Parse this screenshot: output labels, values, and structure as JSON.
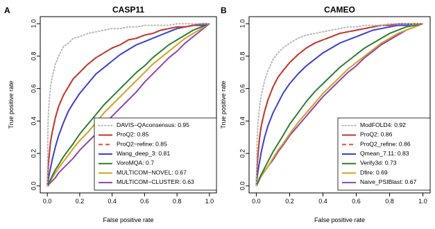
{
  "chart_data": [
    {
      "type": "line",
      "panel_letter": "A",
      "title": "CASP11",
      "xlabel": "False positive rate",
      "ylabel": "True positive rate",
      "xlim": [
        0,
        1
      ],
      "ylim": [
        0,
        1
      ],
      "xticks": [
        "0.0",
        "0.2",
        "0.4",
        "0.6",
        "0.8",
        "1.0"
      ],
      "yticks": [
        "0.0",
        "0.2",
        "0.4",
        "0.6",
        "0.8",
        "1.0"
      ],
      "grid": false,
      "legend_position": "bottom-right",
      "x": [
        0,
        0.005,
        0.01,
        0.02,
        0.03,
        0.05,
        0.07,
        0.1,
        0.13,
        0.16,
        0.2,
        0.25,
        0.3,
        0.35,
        0.4,
        0.45,
        0.5,
        0.55,
        0.6,
        0.65,
        0.7,
        0.75,
        0.8,
        0.85,
        0.9,
        0.95,
        1
      ],
      "series": [
        {
          "name": "DAVIS–QAconsensus",
          "auc_label": "0.95",
          "color": "#b8b8b8",
          "dash": "dotted",
          "values": [
            0,
            0.4,
            0.5,
            0.61,
            0.67,
            0.75,
            0.8,
            0.86,
            0.88,
            0.91,
            0.92,
            0.94,
            0.95,
            0.96,
            0.97,
            0.97,
            0.98,
            0.98,
            0.99,
            0.99,
            0.99,
            0.99,
            1.0,
            1.0,
            1.0,
            1.0,
            1
          ]
        },
        {
          "name": "ProQ2",
          "auc_label": "0.85",
          "color": "#c0392b",
          "dash": "solid",
          "values": [
            0,
            0.1,
            0.17,
            0.27,
            0.33,
            0.42,
            0.49,
            0.56,
            0.61,
            0.66,
            0.7,
            0.75,
            0.79,
            0.82,
            0.85,
            0.87,
            0.9,
            0.91,
            0.93,
            0.94,
            0.96,
            0.97,
            0.98,
            0.98,
            0.99,
            1.0,
            1
          ]
        },
        {
          "name": "ProQ2−refine",
          "auc_label": "0.85",
          "color": "#e74c3c",
          "dash": "dashed",
          "values": [
            0,
            0.1,
            0.17,
            0.27,
            0.33,
            0.42,
            0.49,
            0.56,
            0.61,
            0.66,
            0.7,
            0.75,
            0.79,
            0.82,
            0.85,
            0.87,
            0.9,
            0.91,
            0.93,
            0.94,
            0.96,
            0.97,
            0.98,
            0.98,
            0.99,
            1.0,
            1
          ]
        },
        {
          "name": "Wang_deep_3",
          "auc_label": "0.81",
          "color": "#3a3fcf",
          "dash": "solid",
          "values": [
            0,
            0.03,
            0.06,
            0.11,
            0.16,
            0.24,
            0.31,
            0.39,
            0.46,
            0.51,
            0.57,
            0.63,
            0.69,
            0.73,
            0.77,
            0.81,
            0.84,
            0.87,
            0.89,
            0.91,
            0.93,
            0.95,
            0.97,
            0.98,
            0.99,
            0.99,
            1
          ]
        },
        {
          "name": "VoroMQA",
          "auc_label": "0.7",
          "color": "#2e7d32",
          "dash": "solid",
          "values": [
            0,
            0.01,
            0.02,
            0.04,
            0.06,
            0.1,
            0.13,
            0.18,
            0.22,
            0.26,
            0.32,
            0.38,
            0.44,
            0.5,
            0.55,
            0.6,
            0.65,
            0.7,
            0.74,
            0.79,
            0.83,
            0.87,
            0.9,
            0.93,
            0.96,
            0.98,
            1
          ]
        },
        {
          "name": "MULTICOM−NOVEL",
          "auc_label": "0.67",
          "color": "#d4a020",
          "dash": "solid",
          "values": [
            0,
            0.01,
            0.02,
            0.03,
            0.05,
            0.08,
            0.11,
            0.15,
            0.19,
            0.23,
            0.28,
            0.33,
            0.39,
            0.45,
            0.5,
            0.55,
            0.6,
            0.65,
            0.7,
            0.75,
            0.79,
            0.83,
            0.87,
            0.91,
            0.94,
            0.97,
            1
          ]
        },
        {
          "name": "MULTICOM−CLUSTER",
          "auc_label": "0.63",
          "color": "#8e44ad",
          "dash": "solid",
          "values": [
            0,
            0.0,
            0.01,
            0.02,
            0.03,
            0.05,
            0.08,
            0.11,
            0.14,
            0.17,
            0.22,
            0.27,
            0.32,
            0.38,
            0.43,
            0.48,
            0.53,
            0.58,
            0.64,
            0.69,
            0.74,
            0.79,
            0.83,
            0.88,
            0.92,
            0.96,
            1
          ]
        }
      ]
    },
    {
      "type": "line",
      "panel_letter": "B",
      "title": "CAMEO",
      "xlabel": "False positive rate",
      "ylabel": "True positive rate",
      "xlim": [
        0,
        1
      ],
      "ylim": [
        0,
        1
      ],
      "xticks": [
        "0.0",
        "0.2",
        "0.4",
        "0.6",
        "0.8",
        "1.0"
      ],
      "yticks": [
        "0.0",
        "0.2",
        "0.4",
        "0.6",
        "0.8",
        "1.0"
      ],
      "grid": false,
      "legend_position": "bottom-right",
      "x": [
        0,
        0.005,
        0.01,
        0.02,
        0.03,
        0.05,
        0.07,
        0.1,
        0.13,
        0.16,
        0.2,
        0.25,
        0.3,
        0.35,
        0.4,
        0.45,
        0.5,
        0.55,
        0.6,
        0.65,
        0.7,
        0.75,
        0.8,
        0.85,
        0.9,
        0.95,
        1
      ],
      "series": [
        {
          "name": "ModFOLD4",
          "auc_label": "0.92",
          "color": "#b8b8b8",
          "dash": "dotted",
          "values": [
            0,
            0.28,
            0.38,
            0.49,
            0.56,
            0.65,
            0.71,
            0.78,
            0.82,
            0.85,
            0.88,
            0.91,
            0.93,
            0.94,
            0.95,
            0.96,
            0.97,
            0.98,
            0.98,
            0.99,
            0.99,
            0.99,
            1.0,
            1.0,
            1.0,
            1.0,
            1
          ]
        },
        {
          "name": "ProQ2",
          "auc_label": "0.86",
          "color": "#c0392b",
          "dash": "solid",
          "values": [
            0,
            0.12,
            0.19,
            0.3,
            0.37,
            0.46,
            0.53,
            0.61,
            0.67,
            0.71,
            0.76,
            0.81,
            0.85,
            0.88,
            0.9,
            0.92,
            0.94,
            0.95,
            0.96,
            0.97,
            0.98,
            0.99,
            0.99,
            1.0,
            1.0,
            1.0,
            1
          ]
        },
        {
          "name": "ProQ2_refine",
          "auc_label": "0.86",
          "color": "#e74c3c",
          "dash": "dashed",
          "values": [
            0,
            0.12,
            0.19,
            0.3,
            0.37,
            0.46,
            0.53,
            0.61,
            0.67,
            0.71,
            0.76,
            0.81,
            0.85,
            0.88,
            0.9,
            0.92,
            0.94,
            0.95,
            0.96,
            0.97,
            0.98,
            0.99,
            0.99,
            1.0,
            1.0,
            1.0,
            1
          ]
        },
        {
          "name": "Qmean_7.11",
          "auc_label": "0.83",
          "color": "#3a3fcf",
          "dash": "solid",
          "values": [
            0,
            0.05,
            0.09,
            0.15,
            0.21,
            0.3,
            0.37,
            0.45,
            0.51,
            0.57,
            0.63,
            0.69,
            0.74,
            0.78,
            0.82,
            0.85,
            0.88,
            0.9,
            0.92,
            0.94,
            0.96,
            0.97,
            0.98,
            0.99,
            0.99,
            1.0,
            1
          ]
        },
        {
          "name": "Verify3d",
          "auc_label": "0.73",
          "color": "#2e7d32",
          "dash": "solid",
          "values": [
            0,
            0.01,
            0.02,
            0.05,
            0.07,
            0.11,
            0.15,
            0.21,
            0.26,
            0.31,
            0.38,
            0.45,
            0.52,
            0.58,
            0.63,
            0.68,
            0.73,
            0.77,
            0.81,
            0.85,
            0.88,
            0.91,
            0.94,
            0.96,
            0.98,
            0.99,
            1
          ]
        },
        {
          "name": "Dfire",
          "auc_label": "0.69",
          "color": "#d4a020",
          "dash": "solid",
          "values": [
            0,
            0.01,
            0.02,
            0.04,
            0.06,
            0.09,
            0.12,
            0.17,
            0.22,
            0.26,
            0.32,
            0.39,
            0.45,
            0.51,
            0.57,
            0.62,
            0.67,
            0.72,
            0.76,
            0.8,
            0.84,
            0.88,
            0.91,
            0.94,
            0.96,
            0.98,
            1
          ]
        },
        {
          "name": "Naive_PSIBlast",
          "auc_label": "0.67",
          "color": "#8e44ad",
          "dash": "solid",
          "values": [
            0,
            0.01,
            0.02,
            0.04,
            0.06,
            0.09,
            0.12,
            0.16,
            0.21,
            0.25,
            0.31,
            0.37,
            0.43,
            0.49,
            0.55,
            0.6,
            0.65,
            0.7,
            0.74,
            0.79,
            0.83,
            0.87,
            0.9,
            0.93,
            0.96,
            0.98,
            1
          ]
        }
      ]
    }
  ]
}
